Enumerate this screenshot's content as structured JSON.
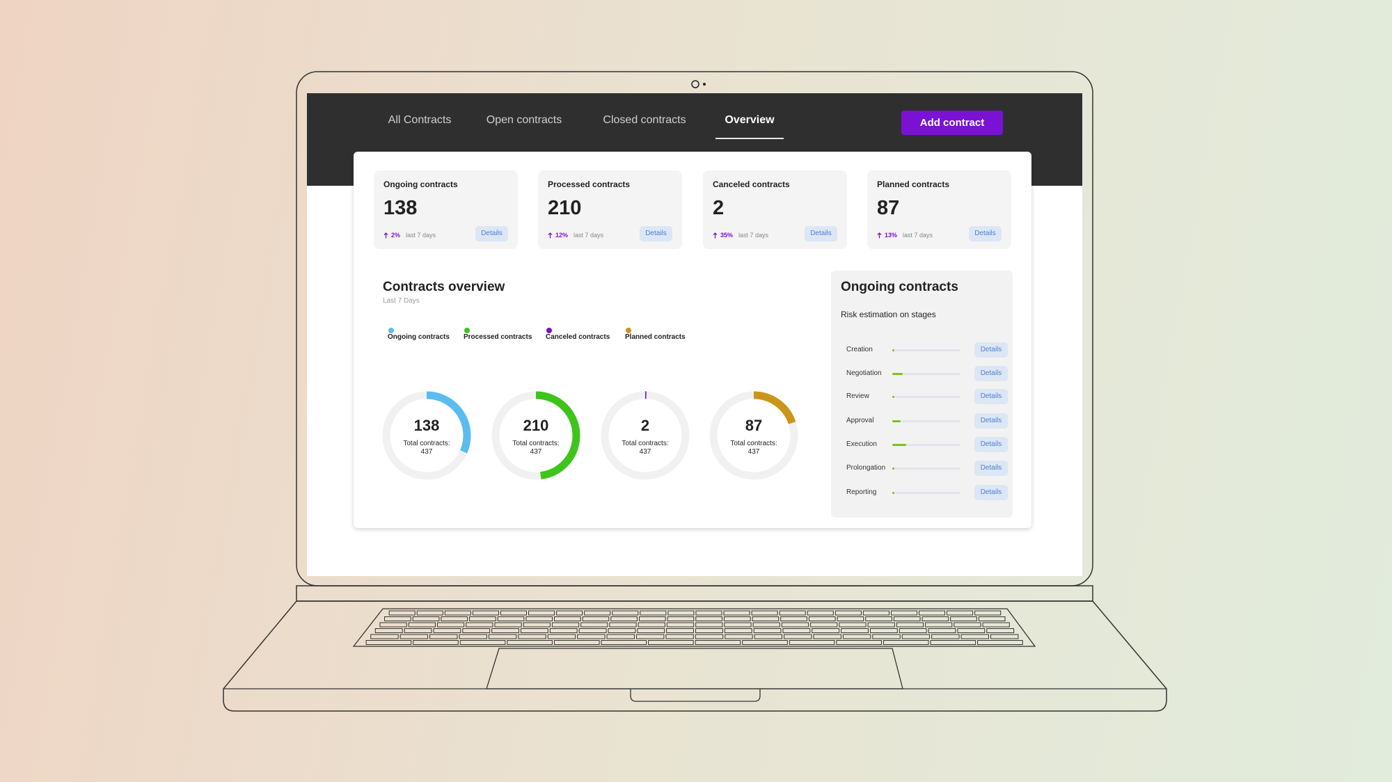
{
  "nav": {
    "tabs": [
      "All Contracts",
      "Open contracts",
      "Closed contracts",
      "Overview"
    ],
    "active_tab": 3,
    "button": "Add contract"
  },
  "stat_cards": [
    {
      "title": "Ongoing contracts",
      "value": 138,
      "change": "2%",
      "period": "last 7 days",
      "button": "Details"
    },
    {
      "title": "Processed contracts",
      "value": 210,
      "change": "12%",
      "period": "last 7 days",
      "button": "Details"
    },
    {
      "title": "Canceled contracts",
      "value": 2,
      "change": "35%",
      "period": "last 7 days",
      "button": "Details"
    },
    {
      "title": "Planned contracts",
      "value": 87,
      "change": "13%",
      "period": "last 7 days",
      "button": "Details"
    }
  ],
  "overview": {
    "title": "Contracts overview",
    "subtitle": "Last 7 Days",
    "legend": [
      {
        "name": "Ongoing contracts",
        "color": "#5bbcf0"
      },
      {
        "name": "Processed contracts",
        "color": "#3ec41a"
      },
      {
        "name": "Canceled contracts",
        "color": "#7a12c8"
      },
      {
        "name": "Planned contracts",
        "color": "#c9961a"
      }
    ],
    "donuts": [
      {
        "value": 138,
        "total_label": "Total contracts:",
        "total": 437,
        "color": "#5bbcf0"
      },
      {
        "value": 210,
        "total_label": "Total contracts:",
        "total": 437,
        "color": "#3ec41a"
      },
      {
        "value": 2,
        "total_label": "Total contracts:",
        "total": 437,
        "color": "#7a12c8"
      },
      {
        "value": 87,
        "total_label": "Total contracts:",
        "total": 437,
        "color": "#c9961a"
      }
    ]
  },
  "risk_panel": {
    "title": "Ongoing contracts",
    "subtitle": "Risk estimation on stages",
    "stages": [
      {
        "name": "Creation",
        "risk": 2,
        "button": "Details"
      },
      {
        "name": "Negotiation",
        "risk": 15,
        "button": "Details"
      },
      {
        "name": "Review",
        "risk": 2,
        "button": "Details"
      },
      {
        "name": "Approval",
        "risk": 12,
        "button": "Details"
      },
      {
        "name": "Execution",
        "risk": 20,
        "button": "Details"
      },
      {
        "name": "Prolongation",
        "risk": 2,
        "button": "Details"
      },
      {
        "name": "Reporting",
        "risk": 2,
        "button": "Details"
      }
    ]
  }
}
